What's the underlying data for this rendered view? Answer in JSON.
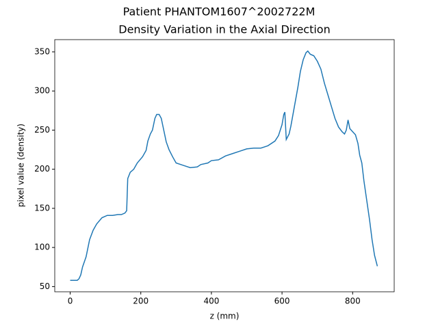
{
  "chart_data": {
    "type": "line",
    "suptitle": "Patient PHANTOM1607^2002722M",
    "title": "Density Variation in the Axial Direction",
    "xlabel": "z (mm)",
    "ylabel": "pixel value (density)",
    "x": [
      0,
      20,
      25,
      30,
      35,
      45,
      55,
      65,
      75,
      90,
      105,
      120,
      135,
      145,
      155,
      160,
      163,
      170,
      180,
      190,
      205,
      215,
      220,
      227,
      233,
      240,
      245,
      252,
      258,
      265,
      272,
      280,
      290,
      300,
      320,
      340,
      360,
      370,
      390,
      400,
      420,
      440,
      460,
      480,
      500,
      520,
      540,
      560,
      580,
      590,
      600,
      605,
      608,
      612,
      620,
      625,
      635,
      645,
      652,
      660,
      668,
      673,
      680,
      690,
      700,
      710,
      720,
      730,
      740,
      750,
      760,
      770,
      777,
      782,
      787,
      792,
      800,
      808,
      815,
      820,
      826,
      832,
      840,
      848,
      855,
      862,
      870
    ],
    "series": [
      {
        "name": "density",
        "color": "#1f77b4",
        "values": [
          58,
          58,
          60,
          65,
          75,
          88,
          110,
          122,
          130,
          138,
          141,
          141,
          142,
          142,
          144,
          147,
          188,
          196,
          200,
          208,
          216,
          224,
          236,
          245,
          250,
          265,
          270,
          270,
          265,
          250,
          235,
          225,
          216,
          208,
          205,
          202,
          203,
          206,
          208,
          211,
          212,
          217,
          220,
          223,
          226,
          227,
          227,
          230,
          236,
          243,
          257,
          270,
          273,
          238,
          245,
          255,
          280,
          305,
          325,
          340,
          349,
          351,
          347,
          345,
          338,
          328,
          310,
          295,
          280,
          265,
          254,
          248,
          245,
          250,
          263,
          252,
          248,
          244,
          233,
          218,
          208,
          185,
          160,
          135,
          110,
          90,
          76
        ]
      }
    ],
    "xlim": [
      -43.7,
      917.7
    ],
    "xticks": [
      0,
      200,
      400,
      600,
      800
    ],
    "ylim": [
      43.35,
      365.65
    ],
    "yticks": [
      50,
      100,
      150,
      200,
      250,
      300,
      350
    ],
    "grid": false
  }
}
